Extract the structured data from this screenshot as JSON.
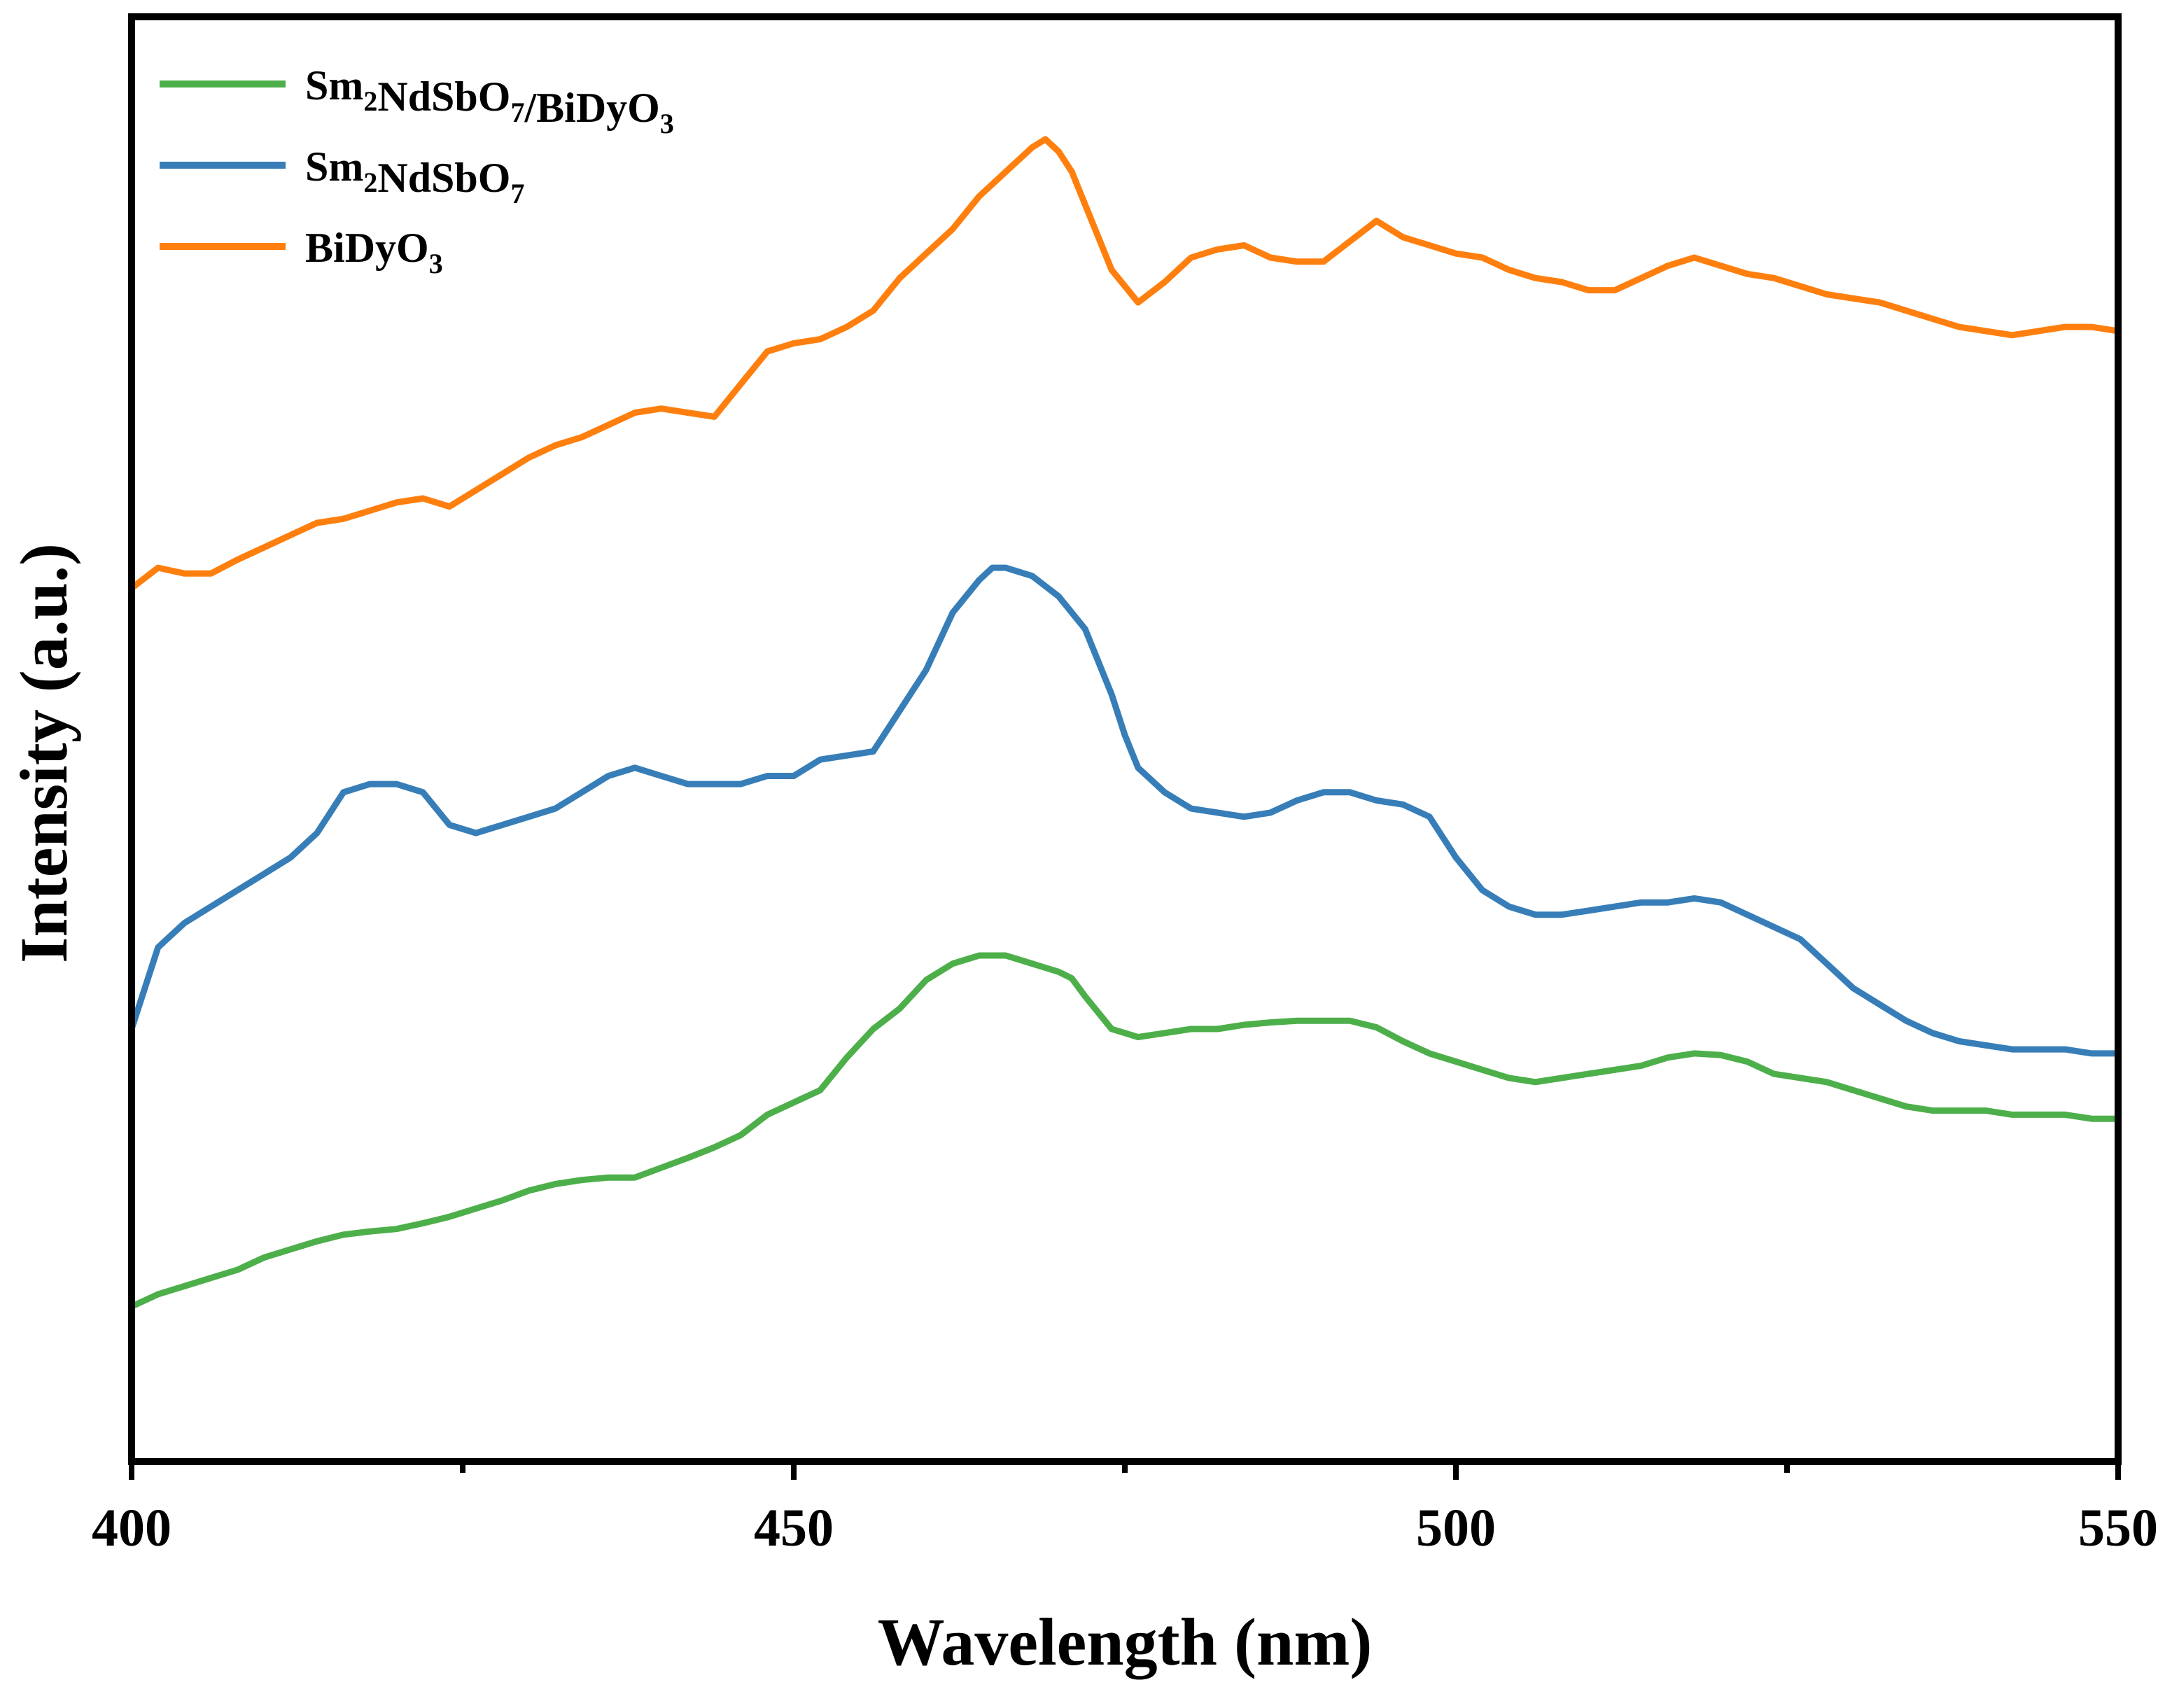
{
  "chart_data": {
    "type": "line",
    "title": "",
    "xlabel": "Wavelength (nm)",
    "ylabel": "Intensity (a.u.)",
    "xlim": [
      400,
      550
    ],
    "ylim": [
      0,
      1
    ],
    "x_ticks": [
      400,
      450,
      500,
      550
    ],
    "x_tick_labels": [
      "400",
      "450",
      "500",
      "550"
    ],
    "minor_ticks": [
      425,
      475,
      525
    ],
    "y_ticks_shown": false,
    "grid": false,
    "legend_position": "top-left",
    "series": [
      {
        "name": "Sm2NdSbO7/BiDyO3",
        "legend_parts": [
          {
            "t": "Sm",
            "sub": false
          },
          {
            "t": "2",
            "sub": true
          },
          {
            "t": "NdSbO",
            "sub": false
          },
          {
            "t": "7",
            "sub": true
          },
          {
            "t": "/BiDyO",
            "sub": false
          },
          {
            "t": "3",
            "sub": true
          }
        ],
        "color": "#4daf4a",
        "x": [
          400,
          402,
          404,
          406,
          408,
          410,
          412,
          414,
          416,
          418,
          420,
          422,
          424,
          426,
          428,
          430,
          432,
          434,
          436,
          438,
          440,
          442,
          444,
          446,
          448,
          450,
          452,
          454,
          456,
          458,
          460,
          462,
          464,
          466,
          467,
          468,
          469,
          470,
          471,
          472,
          474,
          476,
          478,
          480,
          482,
          484,
          486,
          488,
          490,
          492,
          494,
          496,
          498,
          500,
          502,
          504,
          506,
          508,
          510,
          512,
          514,
          516,
          518,
          520,
          522,
          524,
          526,
          528,
          530,
          532,
          534,
          536,
          538,
          540,
          542,
          544,
          546,
          548,
          550
        ],
        "y": [
          0.07,
          0.085,
          0.095,
          0.105,
          0.115,
          0.13,
          0.14,
          0.15,
          0.158,
          0.162,
          0.165,
          0.172,
          0.18,
          0.19,
          0.2,
          0.212,
          0.22,
          0.225,
          0.228,
          0.228,
          0.24,
          0.252,
          0.265,
          0.28,
          0.305,
          0.32,
          0.335,
          0.375,
          0.41,
          0.435,
          0.47,
          0.49,
          0.5,
          0.5,
          0.495,
          0.49,
          0.485,
          0.48,
          0.472,
          0.45,
          0.41,
          0.4,
          0.405,
          0.41,
          0.41,
          0.415,
          0.418,
          0.42,
          0.42,
          0.42,
          0.412,
          0.395,
          0.38,
          0.37,
          0.36,
          0.35,
          0.345,
          0.35,
          0.355,
          0.36,
          0.365,
          0.375,
          0.38,
          0.378,
          0.37,
          0.355,
          0.35,
          0.345,
          0.335,
          0.325,
          0.315,
          0.31,
          0.31,
          0.31,
          0.305,
          0.305,
          0.305,
          0.3,
          0.3
        ]
      },
      {
        "name": "Sm2NdSbO7",
        "legend_parts": [
          {
            "t": "Sm",
            "sub": false
          },
          {
            "t": "2",
            "sub": true
          },
          {
            "t": "NdSbO",
            "sub": false
          },
          {
            "t": "7",
            "sub": true
          }
        ],
        "color": "#377eb8",
        "x": [
          400,
          402,
          404,
          406,
          408,
          410,
          412,
          414,
          416,
          418,
          420,
          422,
          424,
          426,
          428,
          430,
          432,
          434,
          436,
          438,
          440,
          442,
          444,
          446,
          448,
          450,
          452,
          454,
          456,
          458,
          460,
          462,
          464,
          465,
          466,
          467,
          468,
          470,
          472,
          474,
          475,
          476,
          478,
          480,
          482,
          484,
          486,
          488,
          490,
          492,
          494,
          496,
          498,
          500,
          502,
          504,
          506,
          508,
          510,
          512,
          514,
          516,
          518,
          520,
          522,
          524,
          526,
          528,
          530,
          532,
          534,
          536,
          538,
          540,
          542,
          544,
          546,
          548,
          550
        ],
        "y": [
          0.41,
          0.51,
          0.54,
          0.56,
          0.58,
          0.6,
          0.62,
          0.65,
          0.7,
          0.71,
          0.71,
          0.7,
          0.66,
          0.65,
          0.66,
          0.67,
          0.68,
          0.7,
          0.72,
          0.73,
          0.72,
          0.71,
          0.71,
          0.71,
          0.72,
          0.72,
          0.74,
          0.745,
          0.75,
          0.8,
          0.85,
          0.92,
          0.96,
          0.975,
          0.975,
          0.97,
          0.965,
          0.94,
          0.9,
          0.82,
          0.77,
          0.73,
          0.7,
          0.68,
          0.675,
          0.67,
          0.675,
          0.69,
          0.7,
          0.7,
          0.69,
          0.685,
          0.67,
          0.62,
          0.58,
          0.56,
          0.55,
          0.55,
          0.555,
          0.56,
          0.565,
          0.565,
          0.57,
          0.565,
          0.55,
          0.535,
          0.52,
          0.49,
          0.46,
          0.44,
          0.42,
          0.405,
          0.395,
          0.39,
          0.385,
          0.385,
          0.385,
          0.38,
          0.38
        ]
      },
      {
        "name": "BiDyO3",
        "legend_parts": [
          {
            "t": "BiDyO",
            "sub": false
          },
          {
            "t": "3",
            "sub": true
          }
        ],
        "color": "#ff7f0e",
        "x": [
          400,
          402,
          404,
          406,
          408,
          410,
          412,
          414,
          416,
          418,
          420,
          422,
          424,
          426,
          428,
          430,
          432,
          434,
          436,
          438,
          440,
          442,
          444,
          446,
          448,
          450,
          452,
          454,
          456,
          458,
          460,
          462,
          464,
          466,
          468,
          469,
          470,
          471,
          472,
          474,
          476,
          478,
          480,
          482,
          484,
          486,
          488,
          490,
          492,
          494,
          496,
          498,
          500,
          502,
          504,
          506,
          508,
          510,
          512,
          514,
          516,
          518,
          520,
          522,
          524,
          526,
          528,
          530,
          532,
          534,
          536,
          538,
          540,
          542,
          544,
          546,
          548,
          550
        ],
        "y": [
          0.95,
          0.975,
          0.968,
          0.968,
          0.985,
          1.0,
          1.015,
          1.03,
          1.035,
          1.045,
          1.055,
          1.06,
          1.05,
          1.07,
          1.09,
          1.11,
          1.125,
          1.135,
          1.15,
          1.165,
          1.17,
          1.165,
          1.16,
          1.2,
          1.24,
          1.25,
          1.255,
          1.27,
          1.29,
          1.33,
          1.36,
          1.39,
          1.43,
          1.46,
          1.49,
          1.5,
          1.485,
          1.46,
          1.42,
          1.34,
          1.3,
          1.325,
          1.355,
          1.365,
          1.37,
          1.355,
          1.35,
          1.35,
          1.375,
          1.4,
          1.38,
          1.37,
          1.36,
          1.355,
          1.34,
          1.33,
          1.325,
          1.315,
          1.315,
          1.33,
          1.345,
          1.355,
          1.345,
          1.335,
          1.33,
          1.32,
          1.31,
          1.305,
          1.3,
          1.29,
          1.28,
          1.27,
          1.265,
          1.26,
          1.265,
          1.27,
          1.27,
          1.265
        ]
      }
    ]
  }
}
